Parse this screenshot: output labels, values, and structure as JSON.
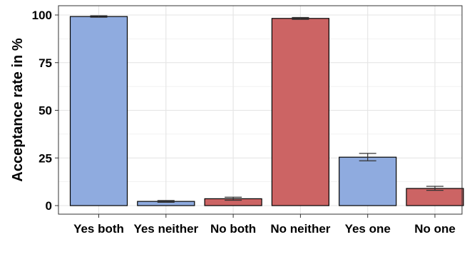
{
  "chart_data": {
    "type": "bar",
    "ylabel": "Acceptance rate in %",
    "xlabel": "",
    "ylim": [
      0,
      100
    ],
    "yticks": [
      0,
      25,
      50,
      75,
      100
    ],
    "grid": true,
    "categories": [
      "Yes both",
      "Yes neither",
      "No both",
      "No neither",
      "Yes one",
      "No one"
    ],
    "values": [
      99.2,
      2.2,
      3.6,
      98.2,
      25.4,
      9.0
    ],
    "errors": [
      [
        98.8,
        99.6
      ],
      [
        1.7,
        2.7
      ],
      [
        2.8,
        4.4
      ],
      [
        97.7,
        98.7
      ],
      [
        23.5,
        27.4
      ],
      [
        8.0,
        10.1
      ]
    ],
    "bar_colors": [
      "#8fabdf",
      "#8fabdf",
      "#cc6464",
      "#cc6464",
      "#8fabdf",
      "#cc6464"
    ],
    "colors": {
      "yes": "#8fabdf",
      "no": "#cc6464",
      "grid": "#e4e4e4",
      "outline": "#000000"
    }
  }
}
